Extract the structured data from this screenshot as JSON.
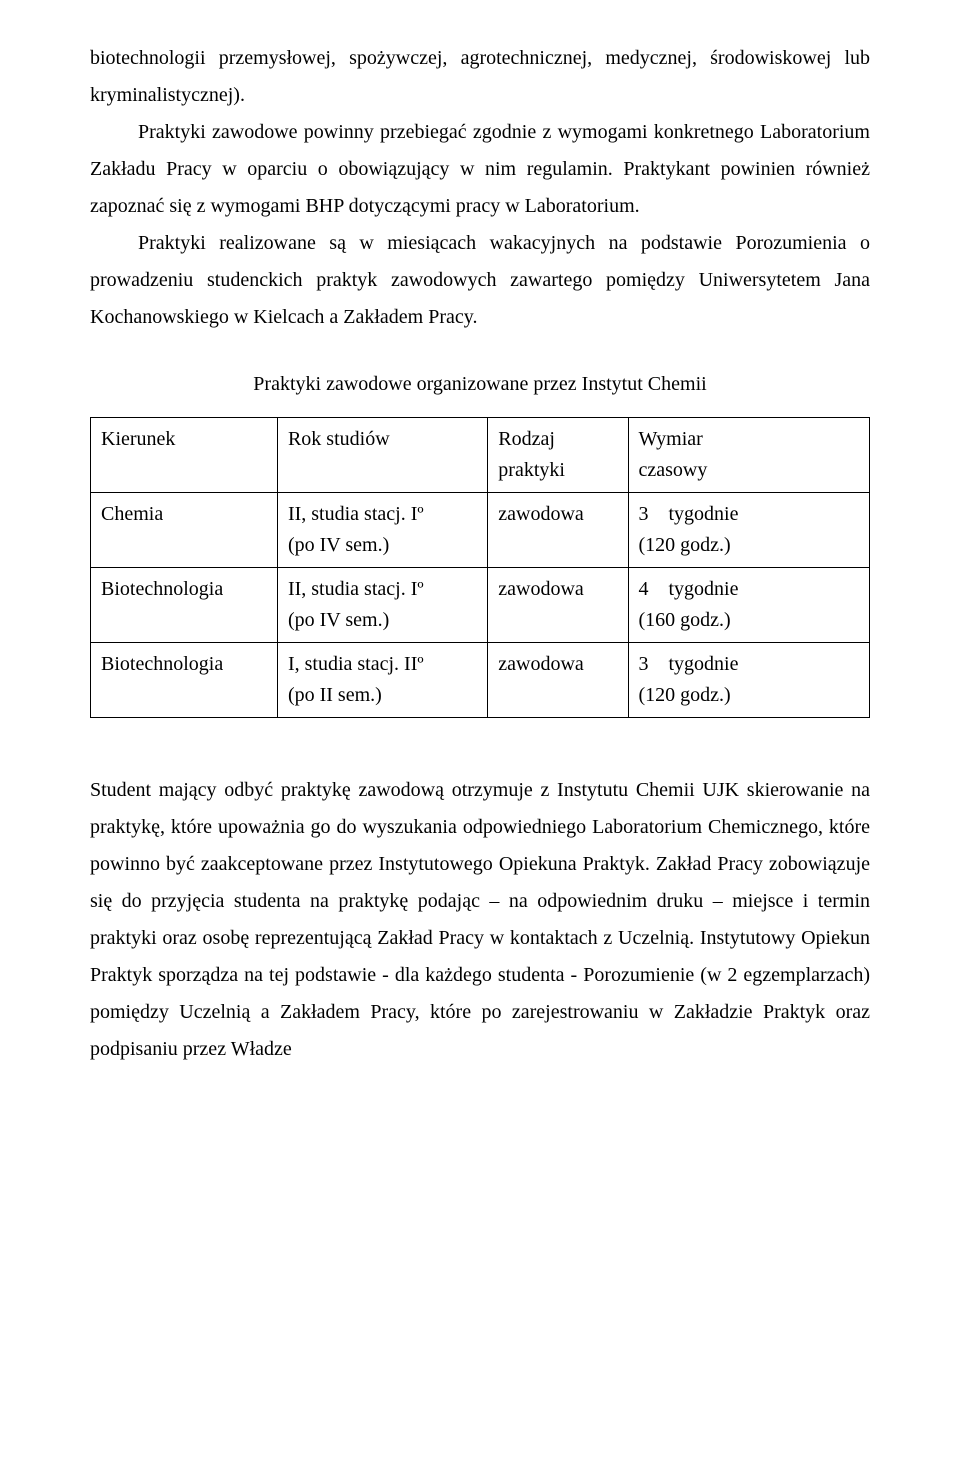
{
  "paragraphs": {
    "p1": "biotechnologii przemysłowej, spożywczej, agrotechnicznej, medycznej, środowiskowej lub kryminalistycznej).",
    "p2": "Praktyki zawodowe powinny przebiegać zgodnie z wymogami konkretnego Laboratorium Zakładu Pracy w oparciu o obowiązujący w nim regulamin. Praktykant powinien również zapoznać się z wymogami BHP dotyczącymi pracy w Laboratorium.",
    "p3": "Praktyki realizowane są w miesiącach wakacyjnych na podstawie Porozumienia o prowadzeniu studenckich praktyk zawodowych zawartego pomiędzy Uniwersytetem Jana Kochanowskiego w Kielcach a Zakładem Pracy.",
    "p4": "Student mający odbyć praktykę zawodową otrzymuje z Instytutu Chemii UJK skierowanie na praktykę, które upoważnia go do wyszukania odpowiedniego Laboratorium Chemicznego, które powinno być zaakceptowane przez Instytutowego Opiekuna Praktyk. Zakład Pracy zobowiązuje się do przyjęcia studenta na praktykę podając – na odpowiednim druku – miejsce i termin praktyki oraz osobę reprezentującą Zakład Pracy w kontaktach z Uczelnią. Instytutowy Opiekun Praktyk sporządza na tej podstawie - dla każdego studenta - Porozumienie (w 2 egzemplarzach) pomiędzy Uczelnią a Zakładem Pracy, które po zarejestrowaniu w Zakładzie Praktyk oraz podpisaniu przez Władze"
  },
  "table": {
    "caption": "Praktyki zawodowe organizowane przez Instytut Chemii",
    "header": {
      "c1": "Kierunek",
      "c2": "Rok studiów",
      "c3a": "Rodzaj",
      "c3b": "praktyki",
      "c4a": "Wymiar",
      "c4b": "czasowy"
    },
    "rows": [
      {
        "kierunek": "Chemia",
        "rok_a": "II, studia stacj. Iº",
        "rok_b": "(po IV sem.)",
        "rodzaj": "zawodowa",
        "wymiar_a": "3 tygodnie",
        "wymiar_b": "(120 godz.)"
      },
      {
        "kierunek": "Biotechnologia",
        "rok_a": "II, studia stacj. Iº",
        "rok_b": "(po IV sem.)",
        "rodzaj": "zawodowa",
        "wymiar_a": "4 tygodnie",
        "wymiar_b": "(160 godz.)"
      },
      {
        "kierunek": "Biotechnologia",
        "rok_a": "I, studia stacj. IIº",
        "rok_b": "(po II sem.)",
        "rodzaj": "zawodowa",
        "wymiar_a": "3 tygodnie",
        "wymiar_b": "(120 godz.)"
      }
    ]
  },
  "colors": {
    "background": "#ffffff",
    "text": "#000000",
    "table_border": "#000000"
  }
}
